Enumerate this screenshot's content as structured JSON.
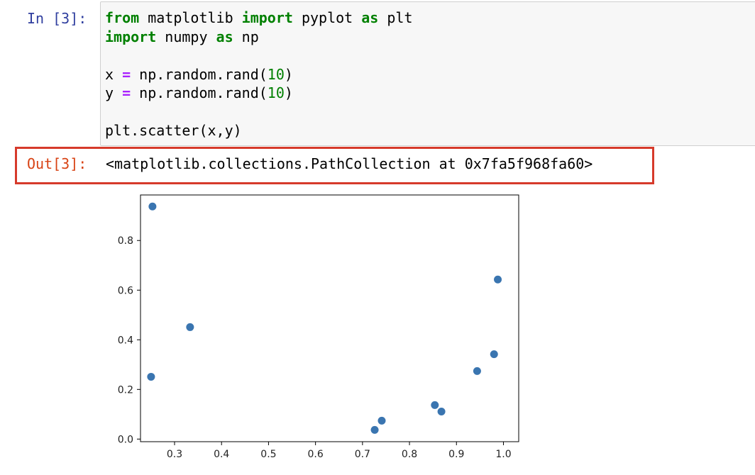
{
  "input_cell": {
    "prompt": "In [3]:",
    "lines": [
      [
        {
          "t": "from",
          "c": "kw"
        },
        {
          "t": " matplotlib ",
          "c": ""
        },
        {
          "t": "import",
          "c": "kw"
        },
        {
          "t": " pyplot ",
          "c": ""
        },
        {
          "t": "as",
          "c": "kw"
        },
        {
          "t": " plt",
          "c": ""
        }
      ],
      [
        {
          "t": "import",
          "c": "kw"
        },
        {
          "t": " numpy ",
          "c": ""
        },
        {
          "t": "as",
          "c": "kw"
        },
        {
          "t": " np",
          "c": ""
        }
      ],
      [],
      [
        {
          "t": "x ",
          "c": ""
        },
        {
          "t": "=",
          "c": "op"
        },
        {
          "t": " np.random.rand(",
          "c": ""
        },
        {
          "t": "10",
          "c": "num"
        },
        {
          "t": ")",
          "c": ""
        }
      ],
      [
        {
          "t": "y ",
          "c": ""
        },
        {
          "t": "=",
          "c": "op"
        },
        {
          "t": " np.random.rand(",
          "c": ""
        },
        {
          "t": "10",
          "c": "num"
        },
        {
          "t": ")",
          "c": ""
        }
      ],
      [],
      [
        {
          "t": "plt.scatter(x,y)",
          "c": ""
        }
      ]
    ]
  },
  "output_cell": {
    "prompt": "Out[3]:",
    "text": "<matplotlib.collections.PathCollection at 0x7fa5f968fa60>"
  },
  "colors": {
    "point": "#3a75b0",
    "highlight_border": "#d63a2b",
    "in_prompt": "#303f9f",
    "out_prompt": "#d84315"
  },
  "chart_data": {
    "type": "scatter",
    "title": "",
    "xlabel": "",
    "ylabel": "",
    "xlim": [
      0.2275,
      1.0325
    ],
    "ylim": [
      -0.0105,
      0.9835
    ],
    "xticks": [
      "0.3",
      "0.4",
      "0.5",
      "0.6",
      "0.7",
      "0.8",
      "0.9",
      "1.0"
    ],
    "yticks": [
      "0.0",
      "0.2",
      "0.4",
      "0.6",
      "0.8"
    ],
    "grid": false,
    "series": [
      {
        "x": [
          0.253,
          0.25,
          0.333,
          0.726,
          0.741,
          0.854,
          0.868,
          0.944,
          0.98,
          0.988
        ],
        "y": [
          0.937,
          0.251,
          0.451,
          0.037,
          0.074,
          0.137,
          0.111,
          0.274,
          0.342,
          0.643
        ]
      }
    ]
  }
}
